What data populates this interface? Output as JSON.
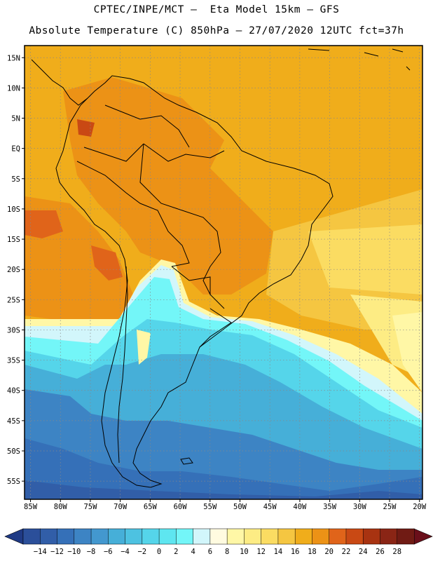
{
  "header": {
    "line1": "CPTEC/INPE/MCT –  Eta Model 15km – GFS",
    "line2": "Absolute Temperature (C) 850hPa – 27/07/2020 12UTC fct=37h"
  },
  "map": {
    "lat_labels": [
      "15N",
      "10N",
      "5N",
      "EQ",
      "5S",
      "10S",
      "15S",
      "20S",
      "25S",
      "30S",
      "35S",
      "40S",
      "45S",
      "50S",
      "55S"
    ],
    "lon_labels": [
      "85W",
      "80W",
      "75W",
      "70W",
      "65W",
      "60W",
      "55W",
      "50W",
      "45W",
      "40W",
      "35W",
      "30W",
      "25W",
      "20W"
    ],
    "lat_range": [
      17,
      -58
    ],
    "lon_range": [
      -86,
      -19.5
    ]
  },
  "colorbar": {
    "labels": [
      "-14",
      "-12",
      "-10",
      "-8",
      "-6",
      "-4",
      "-2",
      "0",
      "2",
      "4",
      "6",
      "8",
      "10",
      "12",
      "14",
      "16",
      "18",
      "20",
      "22",
      "24",
      "26",
      "28"
    ],
    "colors": [
      "#2b4f9a",
      "#315ea8",
      "#3570b8",
      "#3d84c4",
      "#4398cf",
      "#46afd8",
      "#4dc2e1",
      "#55d5ea",
      "#5ee6f0",
      "#73f6f8",
      "#d2f6fb",
      "#fffbe0",
      "#fff7a6",
      "#fdec84",
      "#fbdc62",
      "#f5c641",
      "#f0ad1b",
      "#ec9216",
      "#e0641a",
      "#c94914",
      "#a83311",
      "#8a2515",
      "#701b14"
    ],
    "left_arrow_color": "#1f3a85",
    "right_arrow_color": "#6a0f1a"
  }
}
